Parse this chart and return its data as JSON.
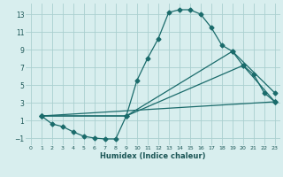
{
  "xlabel": "Humidex (Indice chaleur)",
  "bg_color": "#d8eeee",
  "grid_color": "#aacfcf",
  "line_color": "#1a6b6b",
  "xlim": [
    -0.5,
    23.5
  ],
  "ylim": [
    -1.8,
    14.2
  ],
  "xticks": [
    0,
    1,
    2,
    3,
    4,
    5,
    6,
    7,
    8,
    9,
    10,
    11,
    12,
    13,
    14,
    15,
    16,
    17,
    18,
    19,
    20,
    21,
    22,
    23
  ],
  "yticks": [
    -1,
    1,
    3,
    5,
    7,
    9,
    11,
    13
  ],
  "line1_x": [
    1,
    2,
    3,
    4,
    5,
    6,
    7,
    8,
    9,
    10,
    11,
    12,
    13,
    14,
    15,
    16,
    17,
    18,
    19,
    20,
    21,
    22,
    23
  ],
  "line1_y": [
    1.5,
    0.6,
    0.3,
    -0.3,
    -0.8,
    -1.0,
    -1.1,
    -1.1,
    1.5,
    5.5,
    8.0,
    10.2,
    13.2,
    13.5,
    13.5,
    13.0,
    11.5,
    9.5,
    8.8,
    7.2,
    6.2,
    4.1,
    3.1
  ],
  "line2_x": [
    1,
    23
  ],
  "line2_y": [
    1.5,
    3.1
  ],
  "line3_x": [
    1,
    9,
    19,
    23
  ],
  "line3_y": [
    1.5,
    1.5,
    8.8,
    4.1
  ],
  "line4_x": [
    1,
    9,
    20,
    23
  ],
  "line4_y": [
    1.5,
    1.5,
    7.2,
    3.1
  ]
}
